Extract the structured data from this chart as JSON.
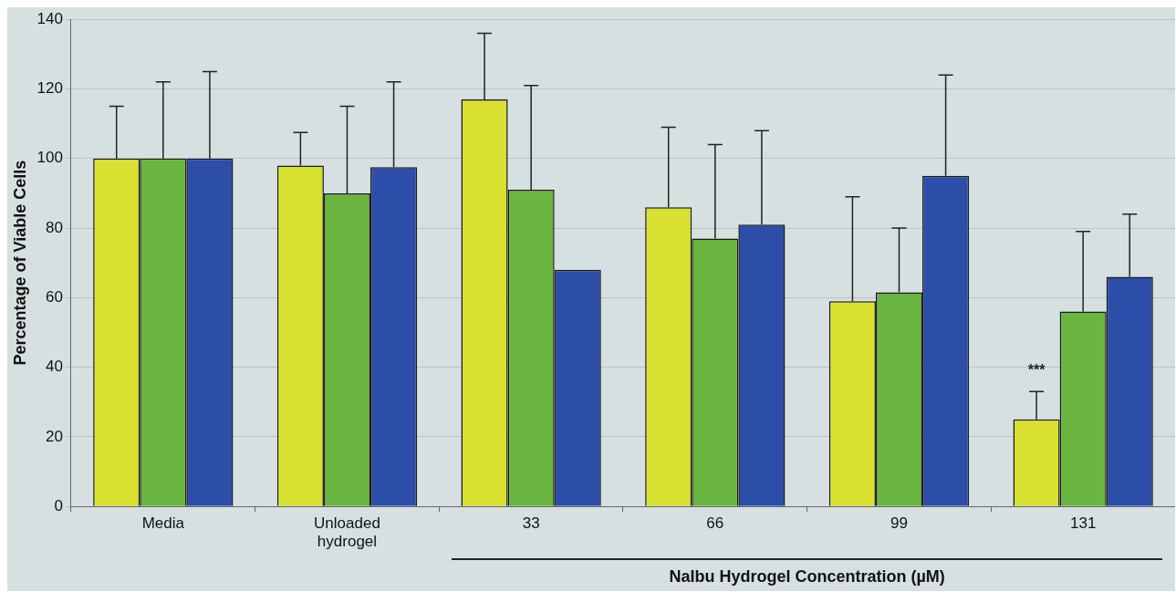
{
  "chart_data": {
    "type": "bar",
    "ylabel": "Percentage of Viable Cells",
    "xlabel": "NaIbu Hydrogel Concentration (µM)",
    "categories": [
      "Media",
      "Unloaded hydrogel",
      "33",
      "66",
      "99",
      "131"
    ],
    "series": [
      {
        "color": "#d8e030",
        "values": [
          100,
          98,
          117,
          86,
          59,
          25
        ],
        "errors": [
          [
            100,
            115
          ],
          [
            98,
            107.5
          ],
          [
            117,
            136
          ],
          [
            86,
            109
          ],
          [
            59,
            89
          ],
          [
            25,
            33
          ]
        ]
      },
      {
        "color": "#6ab440",
        "values": [
          100,
          90,
          91,
          77,
          61.5,
          56
        ],
        "errors": [
          [
            100,
            122
          ],
          [
            90,
            115
          ],
          [
            91,
            121
          ],
          [
            77,
            104
          ],
          [
            61.5,
            80
          ],
          [
            56,
            79
          ]
        ]
      },
      {
        "color": "#2c4ea8",
        "values": [
          100,
          97.5,
          68,
          81,
          95,
          66
        ],
        "errors": [
          [
            100,
            125
          ],
          [
            97.5,
            122
          ],
          null,
          [
            81,
            108
          ],
          [
            95,
            124
          ],
          [
            66,
            84
          ]
        ]
      }
    ],
    "ylim": [
      0,
      140
    ],
    "yticks": [
      0,
      20,
      40,
      60,
      80,
      100,
      120,
      140
    ],
    "grid": "y",
    "annotations": [
      "***"
    ]
  }
}
